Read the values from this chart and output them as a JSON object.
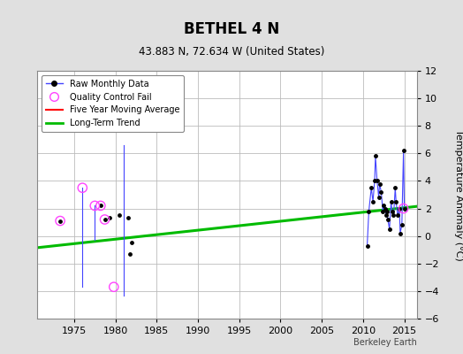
{
  "title": "BETHEL 4 N",
  "subtitle": "43.883 N, 72.634 W (United States)",
  "ylabel": "Temperature Anomaly (°C)",
  "watermark": "Berkeley Earth",
  "xlim": [
    1970.5,
    2016.5
  ],
  "ylim": [
    -6,
    12
  ],
  "yticks": [
    -6,
    -4,
    -2,
    0,
    2,
    4,
    6,
    8,
    10,
    12
  ],
  "xticks": [
    1975,
    1980,
    1985,
    1990,
    1995,
    2000,
    2005,
    2010,
    2015
  ],
  "background_color": "#e0e0e0",
  "plot_bg_color": "#ffffff",
  "grid_color": "#bbbbbb",
  "early_segments": [
    {
      "x": [
        1976.0,
        1976.0
      ],
      "y": [
        3.5,
        -3.7
      ]
    },
    {
      "x": [
        1977.5,
        1977.5
      ],
      "y": [
        2.2,
        -0.3
      ]
    },
    {
      "x": [
        1981.0,
        1981.0
      ],
      "y": [
        6.6,
        -4.3
      ]
    }
  ],
  "isolated_points": {
    "x": [
      1973.3,
      1978.2,
      1978.7,
      1979.3,
      1980.5,
      1981.5,
      1981.8,
      1982.0
    ],
    "y": [
      1.1,
      2.2,
      1.2,
      1.3,
      1.5,
      1.3,
      -1.3,
      -0.5
    ]
  },
  "qc_fail_only": {
    "x": [
      1973.3,
      1976.0,
      1977.5,
      1978.2,
      1978.7,
      1979.8
    ],
    "y": [
      1.1,
      3.5,
      2.2,
      2.2,
      1.2,
      -3.7
    ]
  },
  "cluster_2010s_line": {
    "x": [
      2010.5,
      2010.7,
      2011.0,
      2011.2,
      2011.4,
      2011.5,
      2011.7,
      2011.9,
      2012.0,
      2012.2,
      2012.4,
      2012.5,
      2012.7,
      2012.8,
      2012.9,
      2013.0,
      2013.2,
      2013.4,
      2013.5,
      2013.7,
      2013.9,
      2014.0,
      2014.2,
      2014.4,
      2014.5,
      2014.7,
      2014.9,
      2015.0
    ],
    "y": [
      -0.7,
      1.8,
      3.5,
      2.5,
      4.0,
      5.8,
      4.0,
      2.8,
      3.8,
      3.2,
      1.8,
      2.2,
      2.0,
      1.5,
      1.8,
      1.2,
      0.5,
      2.5,
      1.8,
      1.5,
      3.5,
      2.5,
      1.5,
      2.0,
      0.2,
      0.8,
      6.2,
      2.0
    ]
  },
  "qc_fail_2010s": {
    "x": [
      2014.9
    ],
    "y": [
      2.0
    ]
  },
  "long_term_trend": {
    "x": [
      1970.5,
      2016.5
    ],
    "y": [
      -0.85,
      2.15
    ]
  },
  "colors": {
    "raw_line": "#4444ff",
    "raw_marker": "#000000",
    "qc_fail": "#ff44ff",
    "five_year": "#ff0000",
    "long_term": "#00bb00"
  }
}
